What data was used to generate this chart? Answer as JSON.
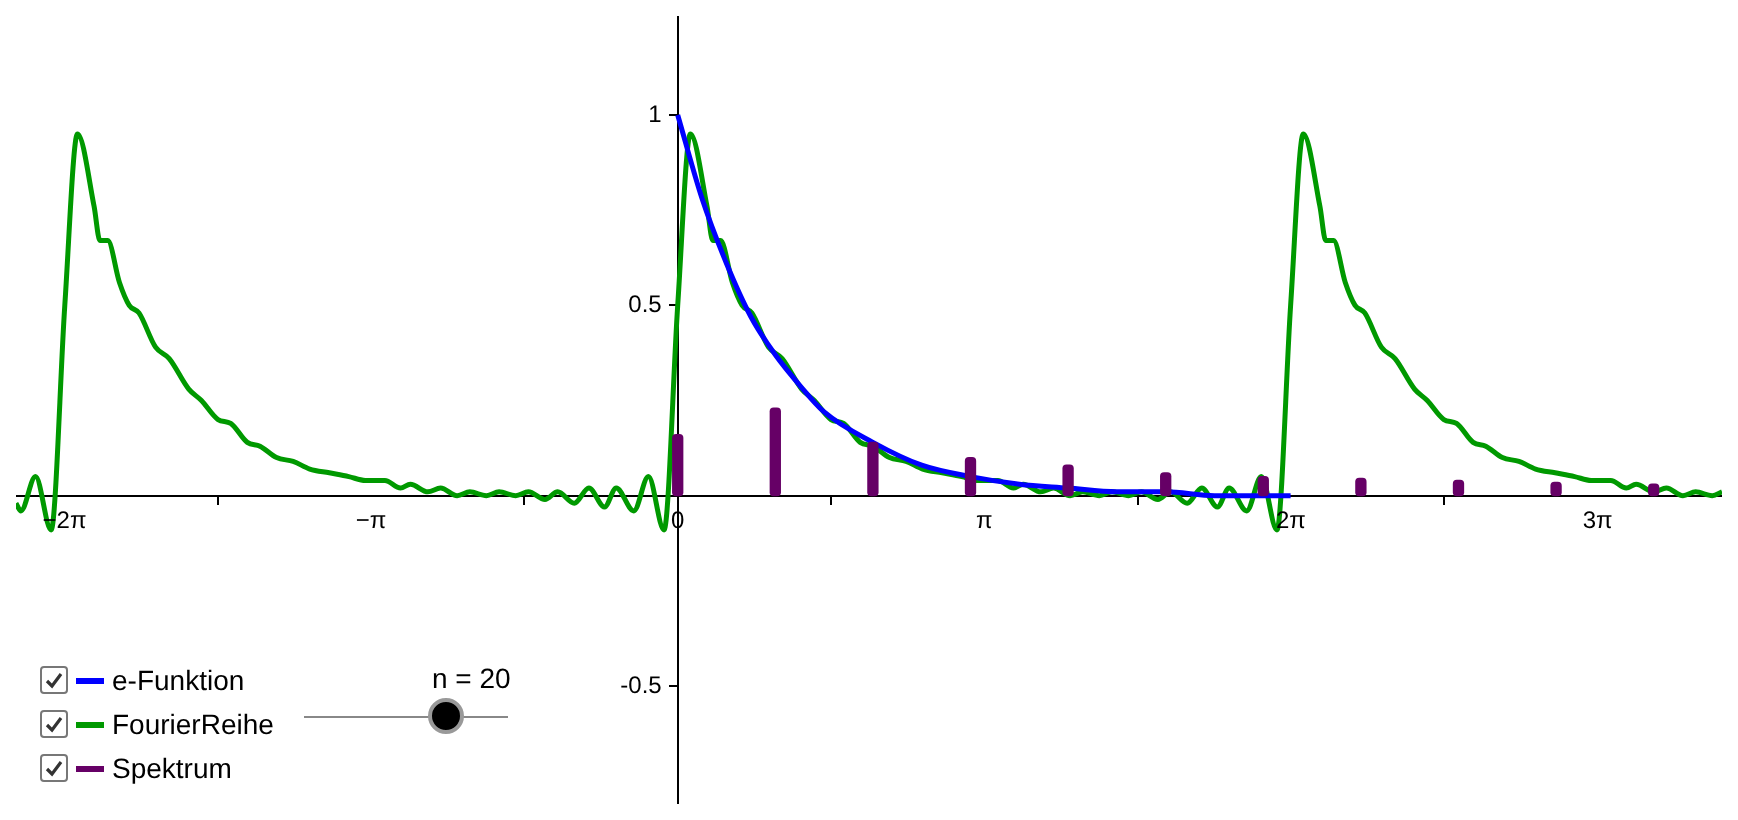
{
  "chart_data": {
    "type": "line",
    "xlim": [
      -6.78,
      10.7
    ],
    "ylim": [
      -0.81,
      1.26
    ],
    "xticks": [
      {
        "value": -6.283,
        "label": "−2π"
      },
      {
        "value": -3.142,
        "label": "−π"
      },
      {
        "value": 0,
        "label": "0"
      },
      {
        "value": 3.142,
        "label": "π"
      },
      {
        "value": 6.283,
        "label": "2π"
      },
      {
        "value": 9.425,
        "label": "3π"
      }
    ],
    "yticks": [
      -0.5,
      0.5,
      1
    ],
    "grid": false,
    "legend": "bottom left",
    "marker": "none",
    "line_style": "solid",
    "annotations": [
      "n = 20"
    ],
    "series": [
      {
        "name": "e-Funktion",
        "color": "#0000ff",
        "x": [
          0,
          0.25,
          0.5,
          0.75,
          1,
          1.25,
          1.5,
          2,
          2.5,
          3,
          3.5,
          4,
          4.5,
          5,
          5.5,
          6.28
        ],
        "values": [
          1,
          0.78,
          0.61,
          0.47,
          0.37,
          0.29,
          0.22,
          0.14,
          0.08,
          0.05,
          0.03,
          0.02,
          0.01,
          0.01,
          0,
          0
        ]
      },
      {
        "name": "FourierReihe",
        "color": "#009900",
        "x": [
          -6.78,
          -6.73,
          -6.58,
          -6.42,
          -6.28,
          -6.15,
          -5.98,
          -5.92,
          -5.84,
          -5.72,
          -5.62,
          -5.52,
          -5.35,
          -5.21,
          -5.01,
          -4.88,
          -4.71,
          -4.58,
          -4.41,
          -4.28,
          -4.11,
          -3.94,
          -3.77,
          -3.57,
          -3.37,
          -3.2,
          -3,
          -2.84,
          -2.74,
          -2.56,
          -2.43,
          -2.26,
          -2.13,
          -1.96,
          -1.83,
          -1.66,
          -1.53,
          -1.36,
          -1.23,
          -1.06,
          -0.91,
          -0.75,
          -0.63,
          -0.45,
          -0.3,
          -0.14,
          0,
          0.13,
          0.3,
          0.36,
          0.44,
          0.56,
          0.66,
          0.76,
          0.93,
          1.07,
          1.27,
          1.4,
          1.57,
          1.7,
          1.87,
          2,
          2.17,
          2.34,
          2.51,
          2.71,
          2.91,
          3.08,
          3.28,
          3.44,
          3.54,
          3.72,
          3.85,
          4.02,
          4.15,
          4.32,
          4.45,
          4.62,
          4.75,
          4.92,
          5.05,
          5.22,
          5.37,
          5.53,
          5.65,
          5.83,
          5.98,
          6.14,
          6.28,
          6.41,
          6.58,
          6.64,
          6.72,
          6.84,
          6.94,
          7.04,
          7.21,
          7.35,
          7.55,
          7.68,
          7.85,
          7.98,
          8.15,
          8.28,
          8.45,
          8.62,
          8.79,
          8.99,
          9.19,
          9.36,
          9.56,
          9.72,
          9.82,
          10,
          10.13,
          10.3,
          10.43,
          10.6,
          10.7
        ],
        "values": [
          -0.02,
          -0.04,
          0.05,
          -0.09,
          0.5,
          0.95,
          0.76,
          0.67,
          0.67,
          0.56,
          0.5,
          0.48,
          0.39,
          0.36,
          0.28,
          0.25,
          0.2,
          0.19,
          0.14,
          0.13,
          0.1,
          0.09,
          0.07,
          0.06,
          0.05,
          0.04,
          0.04,
          0.02,
          0.03,
          0.01,
          0.02,
          0,
          0.01,
          0,
          0.01,
          0,
          0.01,
          -0.01,
          0.01,
          -0.02,
          0.02,
          -0.03,
          0.02,
          -0.04,
          0.05,
          -0.09,
          0.5,
          0.95,
          0.76,
          0.67,
          0.67,
          0.56,
          0.5,
          0.48,
          0.39,
          0.36,
          0.28,
          0.25,
          0.2,
          0.19,
          0.14,
          0.13,
          0.1,
          0.09,
          0.07,
          0.06,
          0.05,
          0.04,
          0.04,
          0.02,
          0.03,
          0.01,
          0.02,
          0,
          0.01,
          0,
          0.01,
          0,
          0.01,
          -0.01,
          0.01,
          -0.02,
          0.02,
          -0.03,
          0.02,
          -0.04,
          0.05,
          -0.09,
          0.5,
          0.95,
          0.76,
          0.67,
          0.67,
          0.56,
          0.5,
          0.48,
          0.39,
          0.36,
          0.28,
          0.25,
          0.2,
          0.19,
          0.14,
          0.13,
          0.1,
          0.09,
          0.07,
          0.06,
          0.05,
          0.04,
          0.04,
          0.02,
          0.03,
          0.01,
          0.02,
          0,
          0.01,
          0,
          0.01
        ]
      },
      {
        "name": "Spektrum",
        "type": "bar",
        "color": "#660066",
        "x": [
          0,
          1,
          2,
          3,
          4,
          5,
          6,
          7,
          8,
          9,
          10
        ],
        "values": [
          0.16,
          0.23,
          0.14,
          0.1,
          0.08,
          0.06,
          0.05,
          0.045,
          0.04,
          0.035,
          0.03
        ]
      }
    ]
  }
}
